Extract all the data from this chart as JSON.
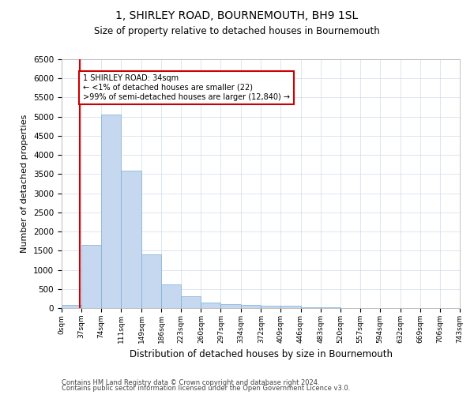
{
  "title": "1, SHIRLEY ROAD, BOURNEMOUTH, BH9 1SL",
  "subtitle": "Size of property relative to detached houses in Bournemouth",
  "xlabel": "Distribution of detached houses by size in Bournemouth",
  "ylabel": "Number of detached properties",
  "footer1": "Contains HM Land Registry data © Crown copyright and database right 2024.",
  "footer2": "Contains public sector information licensed under the Open Government Licence v3.0.",
  "bar_color": "#c5d8f0",
  "bar_edge_color": "#7aadd4",
  "grid_color": "#d0dcea",
  "annotation_line_color": "#cc0000",
  "annotation_box_color": "#cc0000",
  "bin_edges": [
    0,
    37,
    74,
    111,
    149,
    186,
    223,
    260,
    297,
    334,
    372,
    409,
    446,
    483,
    520,
    557,
    594,
    632,
    669,
    706,
    743
  ],
  "bar_heights": [
    75,
    1650,
    5050,
    3600,
    1400,
    625,
    300,
    150,
    110,
    75,
    55,
    55,
    30,
    20,
    10,
    5,
    2,
    2,
    1,
    0
  ],
  "property_size": 34,
  "ylim": [
    0,
    6500
  ],
  "yticks": [
    0,
    500,
    1000,
    1500,
    2000,
    2500,
    3000,
    3500,
    4000,
    4500,
    5000,
    5500,
    6000,
    6500
  ],
  "annotation_line1": "1 SHIRLEY ROAD: 34sqm",
  "annotation_line2": "← <1% of detached houses are smaller (22)",
  "annotation_line3": ">99% of semi-detached houses are larger (12,840) →",
  "xlim_max": 743,
  "bg_color": "#ffffff"
}
